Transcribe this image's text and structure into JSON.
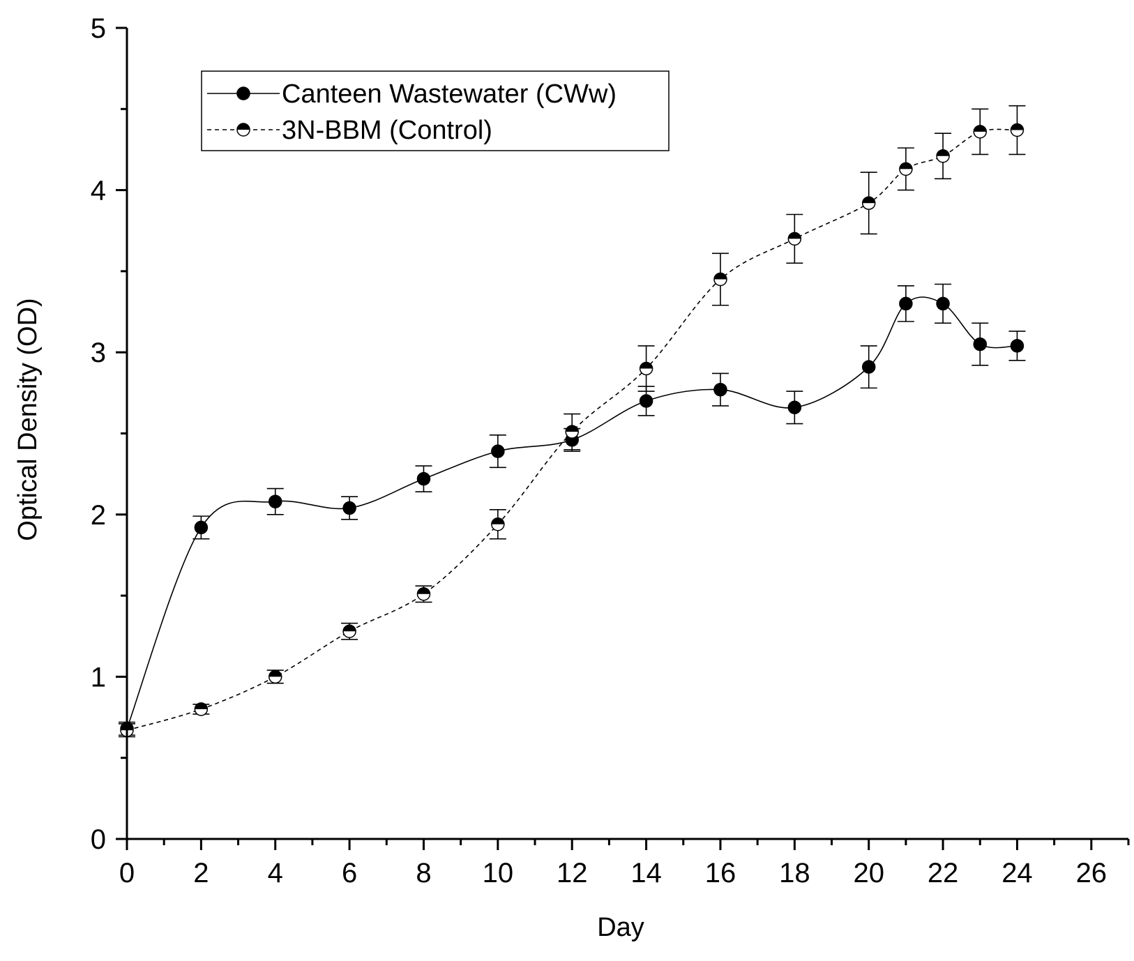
{
  "chart_data": {
    "type": "line",
    "title": "",
    "xlabel": "Day",
    "ylabel": "Optical Density (OD)",
    "xlim": [
      0,
      27
    ],
    "ylim": [
      0,
      5
    ],
    "x_ticks": [
      0,
      2,
      4,
      6,
      8,
      10,
      12,
      14,
      16,
      18,
      20,
      22,
      24,
      26
    ],
    "y_ticks": [
      0,
      1,
      2,
      3,
      4,
      5
    ],
    "x_tick_labels": [
      "0",
      "2",
      "4",
      "6",
      "8",
      "10",
      "12",
      "14",
      "16",
      "18",
      "20",
      "22",
      "24",
      "26"
    ],
    "y_tick_labels": [
      "0",
      "1",
      "2",
      "3",
      "4",
      "5"
    ],
    "grid": false,
    "legend_position": "top-left",
    "series": [
      {
        "name": "Canteen Wastewater (CWw)",
        "line_style": "solid",
        "marker": "filled-circle",
        "x": [
          0,
          2,
          4,
          6,
          8,
          10,
          12,
          14,
          16,
          18,
          20,
          21,
          22,
          23,
          24
        ],
        "y": [
          0.68,
          1.92,
          2.08,
          2.04,
          2.22,
          2.39,
          2.46,
          2.7,
          2.77,
          2.66,
          2.91,
          3.3,
          3.3,
          3.05,
          3.04
        ],
        "error": [
          0.04,
          0.07,
          0.08,
          0.07,
          0.08,
          0.1,
          0.07,
          0.09,
          0.1,
          0.1,
          0.13,
          0.11,
          0.12,
          0.13,
          0.09
        ]
      },
      {
        "name": "3N-BBM (Control)",
        "line_style": "dashed",
        "marker": "half-filled-circle",
        "x": [
          0,
          2,
          4,
          6,
          8,
          10,
          12,
          14,
          16,
          18,
          20,
          21,
          22,
          23,
          24
        ],
        "y": [
          0.67,
          0.8,
          1.0,
          1.28,
          1.51,
          1.94,
          2.51,
          2.9,
          3.45,
          3.7,
          3.92,
          4.13,
          4.21,
          4.36,
          4.37
        ],
        "error": [
          0.04,
          0.03,
          0.04,
          0.05,
          0.05,
          0.09,
          0.11,
          0.14,
          0.16,
          0.15,
          0.19,
          0.13,
          0.14,
          0.14,
          0.15
        ]
      }
    ]
  }
}
